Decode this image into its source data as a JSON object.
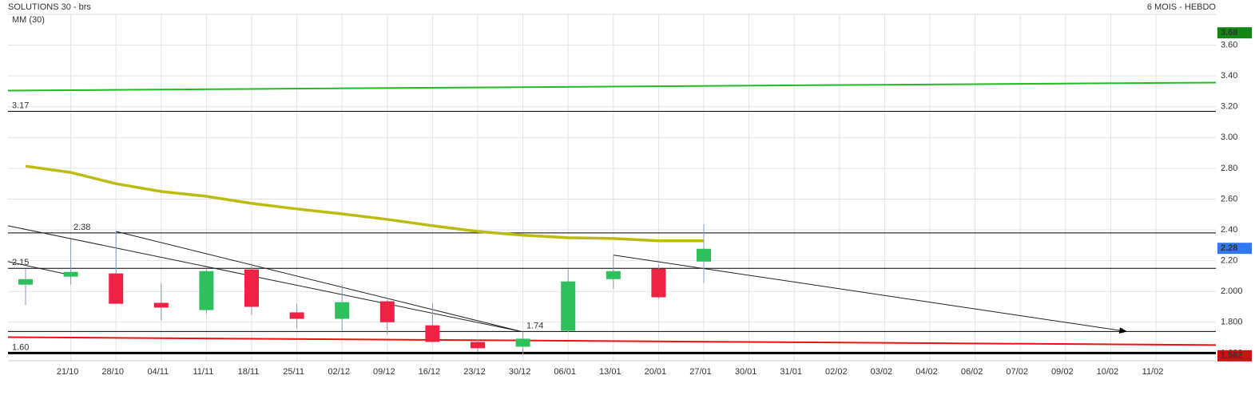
{
  "chart_data": {
    "type": "candlestick",
    "title": "SOLUTIONS 30 - brs",
    "subtitle": "6 MOIS - HEBDO",
    "categories": [
      null,
      "21/10",
      "28/10",
      "04/11",
      "11/11",
      "18/11",
      "25/11",
      "02/12",
      "09/12",
      "16/12",
      "23/12",
      "30/12",
      "06/01",
      "13/01",
      "20/01",
      "27/01",
      "30/01",
      "31/01",
      "02/02",
      "03/02",
      "04/02",
      "06/02",
      "07/02",
      "09/02",
      "10/02",
      "11/02"
    ],
    "open": [
      2.044,
      2.096,
      2.117,
      1.926,
      1.879,
      2.143,
      1.864,
      1.822,
      1.936,
      1.78,
      1.672,
      1.641,
      1.745,
      2.08,
      2.148,
      2.194,
      null,
      null,
      null,
      null,
      null,
      null,
      null,
      null,
      null,
      null
    ],
    "high": [
      2.148,
      2.34,
      2.39,
      2.055,
      2.143,
      2.184,
      1.92,
      2.044,
      1.946,
      1.926,
      1.688,
      1.74,
      2.143,
      2.236,
      2.174,
      2.437,
      null,
      null,
      null,
      null,
      null,
      null,
      null,
      null,
      null,
      null
    ],
    "low": [
      1.91,
      2.044,
      1.92,
      1.812,
      1.858,
      1.848,
      1.76,
      1.745,
      1.72,
      1.672,
      1.605,
      1.59,
      1.735,
      2.019,
      1.952,
      2.055,
      null,
      null,
      null,
      null,
      null,
      null,
      null,
      null,
      null,
      null
    ],
    "close": [
      2.08,
      2.127,
      1.92,
      1.895,
      2.132,
      1.9,
      1.822,
      1.93,
      1.8,
      1.672,
      1.631,
      1.693,
      2.065,
      2.132,
      1.962,
      2.277,
      null,
      null,
      null,
      null,
      null,
      null,
      null,
      null,
      null,
      null
    ],
    "up_color": "#2ec05c",
    "down_color": "#ee2244",
    "series": [
      {
        "name": "MM (30)",
        "color": "#bcbc10",
        "values": [
          2.814,
          2.773,
          2.7,
          2.649,
          2.618,
          2.572,
          2.536,
          2.504,
          2.468,
          2.427,
          2.39,
          2.365,
          2.349,
          2.344,
          2.329,
          2.329,
          null,
          null,
          null,
          null,
          null,
          null,
          null,
          null,
          null,
          null
        ]
      }
    ],
    "ylim": [
      1.55,
      3.8
    ],
    "yticks": [
      {
        "value": 3.6,
        "label": "3.60"
      },
      {
        "value": 3.4,
        "label": "3.40"
      },
      {
        "value": 3.2,
        "label": "3.20"
      },
      {
        "value": 3.0,
        "label": "3.00"
      },
      {
        "value": 2.8,
        "label": "2.80"
      },
      {
        "value": 2.6,
        "label": "2.60"
      },
      {
        "value": 2.4,
        "label": "2.40"
      },
      {
        "value": 2.2,
        "label": "2.20"
      },
      {
        "value": 2.0,
        "label": "2.000"
      },
      {
        "value": 1.8,
        "label": "1.800"
      },
      {
        "value": 1.6,
        "label": "1.600"
      }
    ],
    "grid": true,
    "levels": [
      {
        "value": 3.17,
        "label": "3.17"
      },
      {
        "value": 2.38,
        "label": "2.38"
      },
      {
        "value": 2.15,
        "label": "2.15"
      },
      {
        "value": 1.74,
        "label": "1.74"
      },
      {
        "value": 1.6,
        "label": "1.60",
        "style": "thick"
      }
    ],
    "sloped_lines": [
      {
        "color": "#22bb22",
        "from": 3.305,
        "to": 3.357
      },
      {
        "color": "#ee1111",
        "from": 1.703,
        "to": 1.652
      }
    ],
    "trendlines": [
      {
        "from": [
          -0.39,
          2.427
        ],
        "to": [
          10.96,
          1.74
        ]
      },
      {
        "from": [
          2,
          2.39
        ],
        "to": [
          10.96,
          1.74
        ]
      },
      {
        "from": [
          -0.39,
          2.194
        ],
        "to": [
          1,
          2.106
        ]
      },
      {
        "from": [
          13,
          2.236
        ],
        "to": [
          24.35,
          1.74
        ],
        "arrow": true
      }
    ],
    "price_tags": [
      {
        "value": 3.68,
        "label": "3.68",
        "color": "#118811"
      },
      {
        "value": 2.28,
        "label": "2.28",
        "color": "#3377ee"
      },
      {
        "value": 1.582,
        "label": "1.582",
        "color": "#cc1111"
      }
    ]
  }
}
